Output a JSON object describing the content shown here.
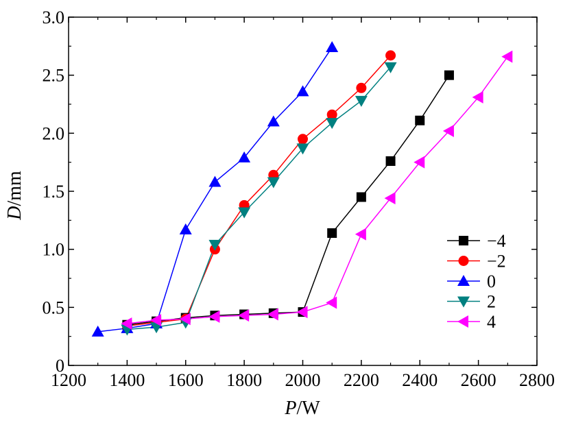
{
  "chart_data": {
    "type": "line",
    "xlabel_var": "P",
    "xlabel_unit": "/W",
    "ylabel_var": "D",
    "ylabel_unit": "/mm",
    "xlim": [
      1200,
      2800
    ],
    "ylim": [
      0,
      3.0
    ],
    "xticks": [
      1200,
      1400,
      1600,
      1800,
      2000,
      2200,
      2400,
      2600,
      2800
    ],
    "xtick_labels": [
      "1200",
      "1400",
      "1600",
      "1800",
      "2000",
      "2200",
      "2400",
      "2600",
      "2800"
    ],
    "yticks": [
      0,
      0.5,
      1.0,
      1.5,
      2.0,
      2.5,
      3.0
    ],
    "ytick_labels": [
      "0",
      "0.5",
      "1.0",
      "1.5",
      "2.0",
      "2.5",
      "3.0"
    ],
    "grid": false,
    "legend_position": "bottom-right",
    "series": [
      {
        "name": "−4",
        "color": "#000000",
        "marker": "square",
        "x": [
          1400,
          1500,
          1600,
          1700,
          1800,
          1900,
          2000,
          2100,
          2200,
          2300,
          2400,
          2500
        ],
        "y": [
          0.35,
          0.38,
          0.41,
          0.43,
          0.44,
          0.45,
          0.46,
          1.14,
          1.45,
          1.76,
          2.11,
          2.5
        ]
      },
      {
        "name": "−2",
        "color": "#ff0000",
        "marker": "circle",
        "x": [
          1400,
          1500,
          1600,
          1700,
          1800,
          1900,
          2000,
          2100,
          2200,
          2300
        ],
        "y": [
          0.34,
          0.37,
          0.4,
          1.0,
          1.38,
          1.64,
          1.95,
          2.16,
          2.39,
          2.67
        ]
      },
      {
        "name": "0",
        "color": "#0000ff",
        "marker": "triangle-up",
        "x": [
          1300,
          1400,
          1500,
          1600,
          1700,
          1800,
          1900,
          2000,
          2100
        ],
        "y": [
          0.29,
          0.32,
          0.36,
          1.17,
          1.58,
          1.79,
          2.1,
          2.36,
          2.74
        ]
      },
      {
        "name": "2",
        "color": "#008080",
        "marker": "triangle-down",
        "x": [
          1400,
          1500,
          1600,
          1700,
          1800,
          1900,
          2000,
          2100,
          2200,
          2300
        ],
        "y": [
          0.31,
          0.33,
          0.37,
          1.04,
          1.32,
          1.58,
          1.87,
          2.09,
          2.28,
          2.57
        ]
      },
      {
        "name": "4",
        "color": "#ff00ff",
        "marker": "triangle-left",
        "x": [
          1400,
          1500,
          1600,
          1700,
          1800,
          1900,
          2000,
          2100,
          2200,
          2300,
          2400,
          2500,
          2600,
          2700
        ],
        "y": [
          0.36,
          0.39,
          0.4,
          0.42,
          0.43,
          0.44,
          0.46,
          0.54,
          1.13,
          1.44,
          1.75,
          2.02,
          2.31,
          2.66
        ]
      }
    ]
  }
}
